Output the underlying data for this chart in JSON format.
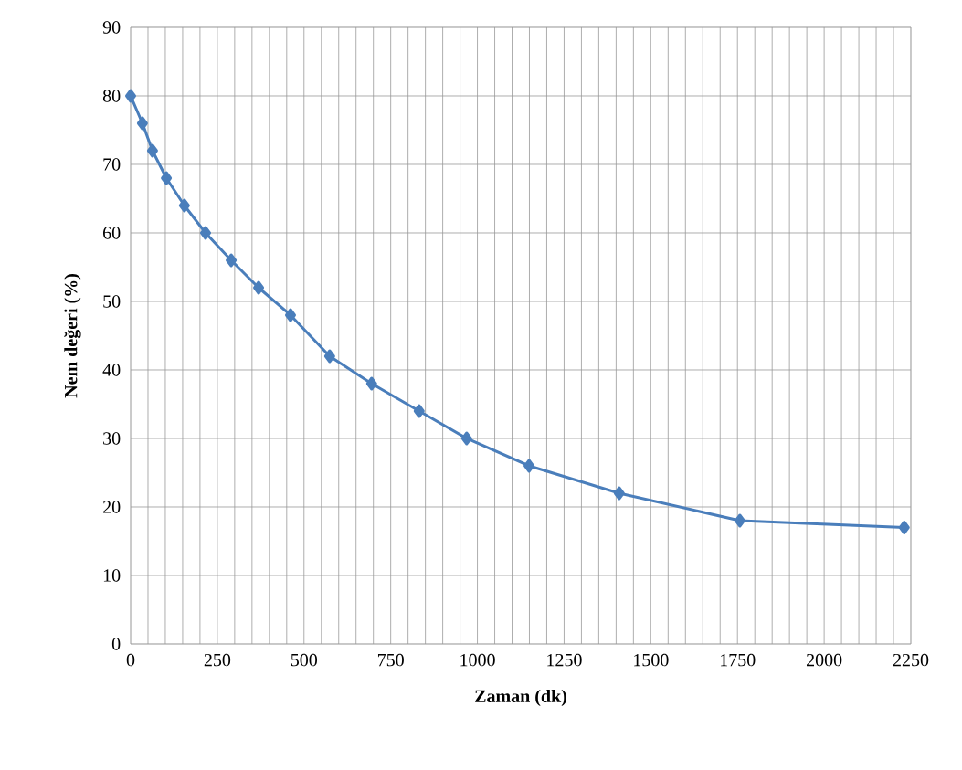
{
  "chart_data": {
    "type": "line",
    "xlabel": "Zaman (dk)",
    "ylabel": "Nem değeri (%)",
    "series": [
      {
        "color": "#4a7ebb",
        "x": [
          0,
          34,
          63,
          103,
          155,
          216,
          290,
          369,
          461,
          574,
          695,
          832,
          969,
          1149,
          1409,
          1757,
          2231
        ],
        "values": [
          80,
          76,
          72,
          68,
          64,
          60,
          56,
          52,
          48,
          42,
          38,
          34,
          30,
          26,
          22,
          18,
          17
        ]
      }
    ],
    "xlim": [
      0,
      2250
    ],
    "xticks": [
      0,
      250,
      500,
      750,
      1000,
      1250,
      1500,
      1750,
      2000,
      2250
    ],
    "ylim": [
      0,
      90
    ],
    "yticks": [
      0,
      10,
      20,
      30,
      40,
      50,
      60,
      70,
      80,
      90
    ],
    "grid": true,
    "marker": "diamond",
    "line_style": "solid"
  }
}
